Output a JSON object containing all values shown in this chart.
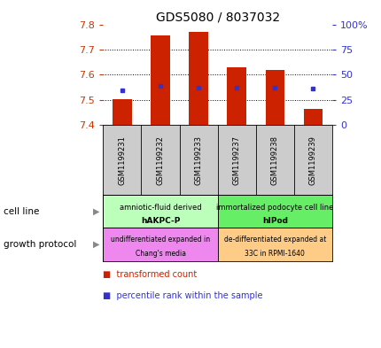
{
  "title": "GDS5080 / 8037032",
  "samples": [
    "GSM1199231",
    "GSM1199232",
    "GSM1199233",
    "GSM1199237",
    "GSM1199238",
    "GSM1199239"
  ],
  "transformed_count": [
    7.505,
    7.755,
    7.77,
    7.63,
    7.62,
    7.465
  ],
  "transformed_bottom": [
    7.4,
    7.4,
    7.4,
    7.4,
    7.4,
    7.4
  ],
  "percentile_rank": [
    7.54,
    7.555,
    7.55,
    7.55,
    7.55,
    7.545
  ],
  "ylim": [
    7.4,
    7.8
  ],
  "y2lim": [
    0,
    100
  ],
  "yticks": [
    7.4,
    7.5,
    7.6,
    7.7,
    7.8
  ],
  "y2ticks": [
    0,
    25,
    50,
    75,
    100
  ],
  "y2ticklabels": [
    "0",
    "25",
    "50",
    "75",
    "100%"
  ],
  "bar_color": "#cc2200",
  "dot_color": "#3333cc",
  "cell_line_groups": [
    {
      "label": "amniotic-fluid derived\nhAKPC-P",
      "color": "#bbffbb",
      "start": 0,
      "end": 2
    },
    {
      "label": "immortalized podocyte cell line\nhIPod",
      "color": "#66ee66",
      "start": 3,
      "end": 5
    }
  ],
  "growth_protocol_groups": [
    {
      "label": "undifferentiated expanded in\nChang's media",
      "color": "#ee88ee",
      "start": 0,
      "end": 2
    },
    {
      "label": "de-differentiated expanded at\n33C in RPMI-1640",
      "color": "#ffcc88",
      "start": 3,
      "end": 5
    }
  ],
  "cell_line_label": "cell line",
  "growth_protocol_label": "growth protocol",
  "legend_items": [
    {
      "label": "transformed count",
      "color": "#cc2200"
    },
    {
      "label": "percentile rank within the sample",
      "color": "#3333cc"
    }
  ],
  "left_tick_color": "#cc3300",
  "right_tick_color": "#3333cc",
  "gsm_panel_color": "#cccccc",
  "grid_color": "#333333",
  "bar_width": 0.5
}
